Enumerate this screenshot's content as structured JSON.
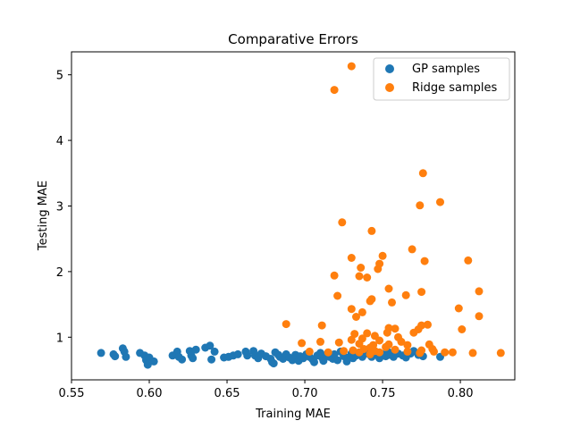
{
  "chart_data": {
    "type": "scatter",
    "title": "Comparative Errors",
    "xlabel": "Training MAE",
    "ylabel": "Testing MAE",
    "xlim": [
      0.55,
      0.835
    ],
    "ylim": [
      0.35,
      5.35
    ],
    "xticks": [
      0.55,
      0.6,
      0.65,
      0.7,
      0.75,
      0.8
    ],
    "xtick_labels": [
      "0.55",
      "0.60",
      "0.65",
      "0.70",
      "0.75",
      "0.80"
    ],
    "yticks": [
      1,
      2,
      3,
      4,
      5
    ],
    "ytick_labels": [
      "1",
      "2",
      "3",
      "4",
      "5"
    ],
    "legend_position": "top-right",
    "grid": false,
    "series": [
      {
        "name": "GP samples",
        "color": "#1f77b4",
        "points": [
          [
            0.569,
            0.76
          ],
          [
            0.577,
            0.74
          ],
          [
            0.578,
            0.71
          ],
          [
            0.583,
            0.83
          ],
          [
            0.584,
            0.78
          ],
          [
            0.585,
            0.7
          ],
          [
            0.594,
            0.76
          ],
          [
            0.597,
            0.72
          ],
          [
            0.598,
            0.65
          ],
          [
            0.599,
            0.58
          ],
          [
            0.6,
            0.69
          ],
          [
            0.603,
            0.63
          ],
          [
            0.615,
            0.72
          ],
          [
            0.618,
            0.78
          ],
          [
            0.619,
            0.7
          ],
          [
            0.621,
            0.66
          ],
          [
            0.626,
            0.79
          ],
          [
            0.627,
            0.72
          ],
          [
            0.628,
            0.68
          ],
          [
            0.63,
            0.81
          ],
          [
            0.636,
            0.84
          ],
          [
            0.639,
            0.87
          ],
          [
            0.64,
            0.66
          ],
          [
            0.642,
            0.78
          ],
          [
            0.648,
            0.69
          ],
          [
            0.651,
            0.7
          ],
          [
            0.654,
            0.72
          ],
          [
            0.657,
            0.74
          ],
          [
            0.662,
            0.78
          ],
          [
            0.663,
            0.72
          ],
          [
            0.667,
            0.79
          ],
          [
            0.668,
            0.72
          ],
          [
            0.67,
            0.68
          ],
          [
            0.672,
            0.75
          ],
          [
            0.675,
            0.71
          ],
          [
            0.678,
            0.67
          ],
          [
            0.679,
            0.62
          ],
          [
            0.68,
            0.6
          ],
          [
            0.681,
            0.77
          ],
          [
            0.683,
            0.73
          ],
          [
            0.684,
            0.7
          ],
          [
            0.686,
            0.67
          ],
          [
            0.688,
            0.74
          ],
          [
            0.69,
            0.69
          ],
          [
            0.692,
            0.65
          ],
          [
            0.694,
            0.73
          ],
          [
            0.696,
            0.64
          ],
          [
            0.697,
            0.71
          ],
          [
            0.699,
            0.68
          ],
          [
            0.701,
            0.74
          ],
          [
            0.703,
            0.7
          ],
          [
            0.705,
            0.66
          ],
          [
            0.706,
            0.62
          ],
          [
            0.708,
            0.72
          ],
          [
            0.71,
            0.76
          ],
          [
            0.711,
            0.69
          ],
          [
            0.712,
            0.64
          ],
          [
            0.714,
            0.73
          ],
          [
            0.716,
            0.7
          ],
          [
            0.718,
            0.67
          ],
          [
            0.719,
            0.74
          ],
          [
            0.721,
            0.65
          ],
          [
            0.723,
            0.78
          ],
          [
            0.725,
            0.71
          ],
          [
            0.727,
            0.63
          ],
          [
            0.728,
            0.69
          ],
          [
            0.73,
            0.75
          ],
          [
            0.731,
            0.68
          ],
          [
            0.733,
            0.72
          ],
          [
            0.735,
            0.77
          ],
          [
            0.737,
            0.7
          ],
          [
            0.738,
            0.74
          ],
          [
            0.74,
            0.81
          ],
          [
            0.742,
            0.73
          ],
          [
            0.743,
            0.7
          ],
          [
            0.745,
            0.76
          ],
          [
            0.747,
            0.72
          ],
          [
            0.748,
            0.68
          ],
          [
            0.75,
            0.74
          ],
          [
            0.752,
            0.71
          ],
          [
            0.754,
            0.77
          ],
          [
            0.755,
            0.73
          ],
          [
            0.757,
            0.7
          ],
          [
            0.76,
            0.75
          ],
          [
            0.763,
            0.72
          ],
          [
            0.765,
            0.69
          ],
          [
            0.768,
            0.75
          ],
          [
            0.77,
            0.79
          ],
          [
            0.773,
            0.73
          ],
          [
            0.776,
            0.71
          ],
          [
            0.787,
            0.7
          ]
        ]
      },
      {
        "name": "Ridge samples",
        "color": "#ff7f0e",
        "points": [
          [
            0.73,
            5.13
          ],
          [
            0.719,
            4.77
          ],
          [
            0.776,
            3.5
          ],
          [
            0.787,
            3.06
          ],
          [
            0.774,
            3.01
          ],
          [
            0.724,
            2.75
          ],
          [
            0.743,
            2.62
          ],
          [
            0.769,
            2.34
          ],
          [
            0.75,
            2.24
          ],
          [
            0.73,
            2.21
          ],
          [
            0.777,
            2.16
          ],
          [
            0.748,
            2.12
          ],
          [
            0.805,
            2.17
          ],
          [
            0.736,
            2.06
          ],
          [
            0.747,
            2.04
          ],
          [
            0.719,
            1.94
          ],
          [
            0.735,
            1.93
          ],
          [
            0.74,
            1.91
          ],
          [
            0.754,
            1.74
          ],
          [
            0.775,
            1.69
          ],
          [
            0.812,
            1.7
          ],
          [
            0.765,
            1.64
          ],
          [
            0.721,
            1.63
          ],
          [
            0.743,
            1.58
          ],
          [
            0.742,
            1.55
          ],
          [
            0.756,
            1.53
          ],
          [
            0.73,
            1.43
          ],
          [
            0.799,
            1.44
          ],
          [
            0.737,
            1.38
          ],
          [
            0.733,
            1.31
          ],
          [
            0.812,
            1.32
          ],
          [
            0.688,
            1.2
          ],
          [
            0.711,
            1.18
          ],
          [
            0.775,
            1.18
          ],
          [
            0.779,
            1.19
          ],
          [
            0.754,
            1.14
          ],
          [
            0.758,
            1.13
          ],
          [
            0.773,
            1.12
          ],
          [
            0.801,
            1.12
          ],
          [
            0.753,
            1.07
          ],
          [
            0.77,
            1.07
          ],
          [
            0.732,
            1.05
          ],
          [
            0.74,
            1.06
          ],
          [
            0.745,
            1.02
          ],
          [
            0.76,
            1.0
          ],
          [
            0.737,
            0.98
          ],
          [
            0.73,
            0.96
          ],
          [
            0.748,
            0.95
          ],
          [
            0.71,
            0.93
          ],
          [
            0.722,
            0.92
          ],
          [
            0.698,
            0.91
          ],
          [
            0.762,
            0.93
          ],
          [
            0.735,
            0.9
          ],
          [
            0.744,
            0.88
          ],
          [
            0.754,
            0.89
          ],
          [
            0.766,
            0.88
          ],
          [
            0.78,
            0.89
          ],
          [
            0.742,
            0.84
          ],
          [
            0.752,
            0.85
          ],
          [
            0.738,
            0.82
          ],
          [
            0.731,
            0.8
          ],
          [
            0.745,
            0.79
          ],
          [
            0.758,
            0.81
          ],
          [
            0.775,
            0.8
          ],
          [
            0.783,
            0.78
          ],
          [
            0.79,
            0.77
          ],
          [
            0.703,
            0.78
          ],
          [
            0.715,
            0.77
          ],
          [
            0.725,
            0.79
          ],
          [
            0.735,
            0.77
          ],
          [
            0.748,
            0.77
          ],
          [
            0.766,
            0.78
          ],
          [
            0.795,
            0.77
          ],
          [
            0.808,
            0.76
          ],
          [
            0.826,
            0.76
          ],
          [
            0.742,
            0.74
          ],
          [
            0.774,
            0.76
          ],
          [
            0.782,
            0.82
          ]
        ]
      }
    ]
  }
}
